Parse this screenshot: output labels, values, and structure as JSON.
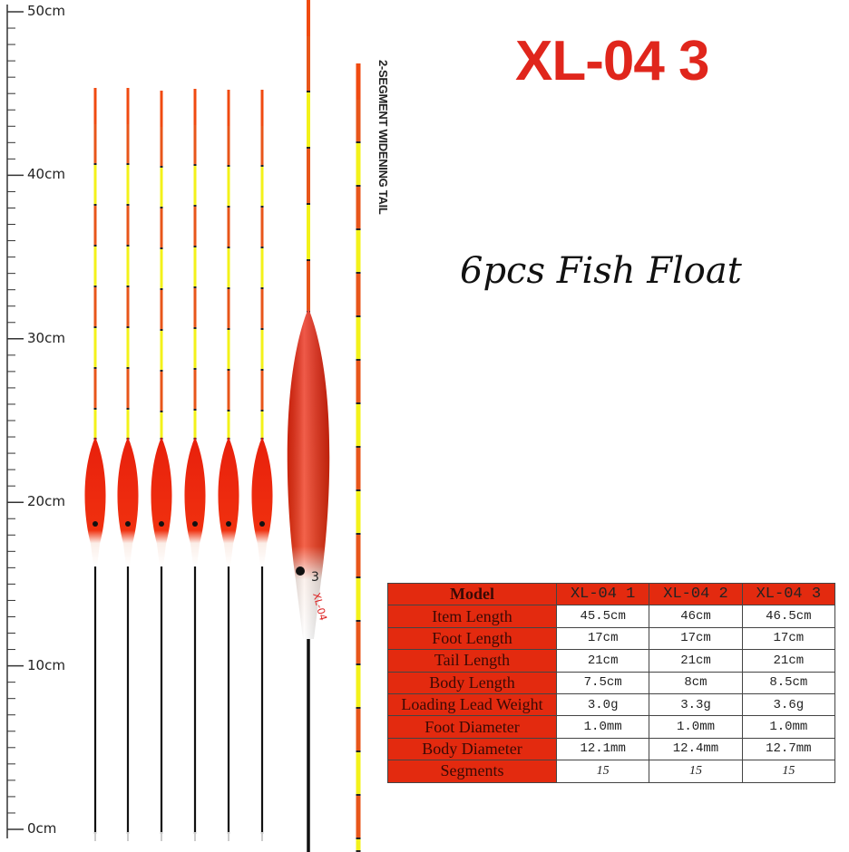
{
  "title": "XL-04 3",
  "subtitle": "6pcs Fish Float",
  "side_label": "2-SEGMENT WIDENING TAIL",
  "ruler": {
    "labels": [
      "50cm",
      "40cm",
      "30cm",
      "20cm",
      "10cm",
      "0cm"
    ]
  },
  "float_marks": {
    "body_number": "3",
    "body_model": "XL-04"
  },
  "colors": {
    "accent_red": "#e32a0f",
    "title_red": "#e0261c",
    "tail_yellow": "#f3f21a"
  },
  "table": {
    "header": [
      "Model",
      "XL-04  1",
      "XL-04  2",
      "XL-04  3"
    ],
    "rows": [
      {
        "label": "Item Length",
        "values": [
          "45.5cm",
          "46cm",
          "46.5cm"
        ]
      },
      {
        "label": "Foot Length",
        "values": [
          "17cm",
          "17cm",
          "17cm"
        ]
      },
      {
        "label": "Tail Length",
        "values": [
          "21cm",
          "21cm",
          "21cm"
        ]
      },
      {
        "label": "Body Length",
        "values": [
          "7.5cm",
          "8cm",
          "8.5cm"
        ]
      },
      {
        "label": "Loading Lead Weight",
        "values": [
          "3.0g",
          "3.3g",
          "3.6g"
        ]
      },
      {
        "label": "Foot Diameter",
        "values": [
          "1.0mm",
          "1.0mm",
          "1.0mm"
        ]
      },
      {
        "label": "Body Diameter",
        "values": [
          "12.1mm",
          "12.4mm",
          "12.7mm"
        ]
      },
      {
        "label": "Segments",
        "values": [
          "15",
          "15",
          "15"
        ]
      }
    ]
  }
}
